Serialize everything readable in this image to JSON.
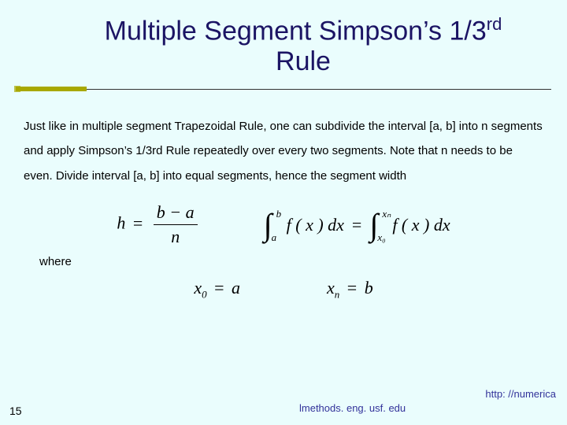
{
  "slide": {
    "title_main": "Multiple Segment Simpson’s 1/3",
    "title_sup": "rd",
    "title_line2": "Rule",
    "para": "Just like in multiple segment Trapezoidal Rule, one can subdivide the interval [a, b] into  n segments and apply Simpson’s 1/3rd Rule repeatedly over every two segments.  Note that n needs to be even.  Divide interval [a, b] into  equal segments, hence the segment width",
    "where": "where",
    "eq_h_lhs": "h",
    "eq_h_num": "b − a",
    "eq_h_den": "n",
    "int1_upper": "b",
    "int1_lower": "a",
    "int2_upper": "xₙ",
    "int2_lower": "x₀",
    "int_fx": "f ( x ) dx",
    "eq_x0_l": "x",
    "eq_x0_sub": "0",
    "eq_x0_r": "a",
    "eq_xn_l": "x",
    "eq_xn_sub": "n",
    "eq_xn_r": "b",
    "page_number": "15",
    "url_right": "http: //numerica",
    "url_bottom": "lmethods. eng. usf. edu",
    "colors": {
      "background": "#eafdfd",
      "title": "#1b1464",
      "accent": "#a8a800",
      "link": "#32329a"
    }
  }
}
